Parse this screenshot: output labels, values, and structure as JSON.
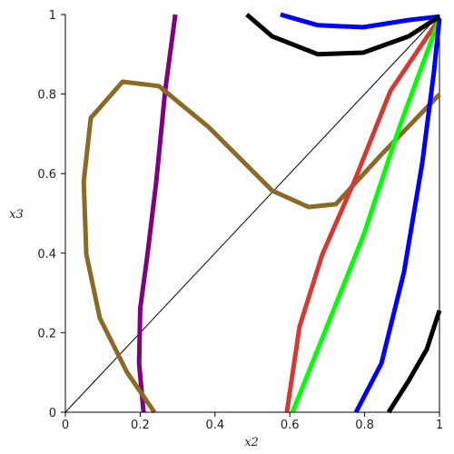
{
  "chart_data": {
    "type": "line",
    "xlabel": "x2",
    "ylabel": "x3",
    "xlim": [
      0,
      1
    ],
    "ylim": [
      0,
      1
    ],
    "xticks": [
      0,
      0.2,
      0.4,
      0.6,
      0.8,
      1
    ],
    "yticks": [
      0,
      0.2,
      0.4,
      0.6,
      0.8,
      1
    ],
    "series": [
      {
        "color": "#000000",
        "width": 1,
        "x": [
          0,
          1
        ],
        "values": [
          0,
          1
        ]
      },
      {
        "color": "#800080",
        "width": 5,
        "x": [
          0.209,
          0.197,
          0.2,
          0.22,
          0.243,
          0.267,
          0.294
        ],
        "values": [
          0,
          0.123,
          0.26,
          0.4,
          0.58,
          0.81,
          1
        ]
      },
      {
        "color": "#8b6a25",
        "width": 5,
        "x": [
          0.238,
          0.165,
          0.092,
          0.056,
          0.049,
          0.068,
          0.153,
          0.25,
          0.383,
          0.553,
          0.65,
          0.723,
          0.845,
          1
        ],
        "values": [
          0,
          0.1,
          0.237,
          0.397,
          0.58,
          0.74,
          0.831,
          0.82,
          0.717,
          0.557,
          0.516,
          0.523,
          0.648,
          0.799
        ]
      },
      {
        "color": "#d43a34",
        "width": 5,
        "x": [
          0.592,
          0.626,
          0.687,
          0.772,
          0.869,
          1
        ],
        "values": [
          0,
          0.215,
          0.397,
          0.58,
          0.808,
          0.99
        ]
      },
      {
        "color": "#00ff00",
        "width": 5,
        "x": [
          0.607,
          0.699,
          0.796,
          0.893,
          1
        ],
        "values": [
          0,
          0.215,
          0.443,
          0.717,
          0.99
        ]
      },
      {
        "color": "#0000ff",
        "width": 5,
        "x": [
          0.777,
          0.845,
          0.905,
          0.954,
          0.985,
          1
        ],
        "values": [
          0,
          0.123,
          0.352,
          0.626,
          0.854,
          0.99
        ]
      },
      {
        "color": "#0000ff",
        "width": 5,
        "x": [
          0.575,
          0.675,
          0.796,
          0.917,
          1
        ],
        "values": [
          1,
          0.973,
          0.968,
          0.986,
          0.995
        ]
      },
      {
        "color": "#000000",
        "width": 5,
        "x": [
          0.485,
          0.553,
          0.675,
          0.796,
          0.917,
          1
        ],
        "values": [
          1,
          0.945,
          0.9,
          0.904,
          0.945,
          0.995
        ]
      },
      {
        "color": "#000000",
        "width": 5,
        "x": [
          0.864,
          0.917,
          0.966,
          1
        ],
        "values": [
          0,
          0.078,
          0.158,
          0.256
        ]
      }
    ]
  }
}
